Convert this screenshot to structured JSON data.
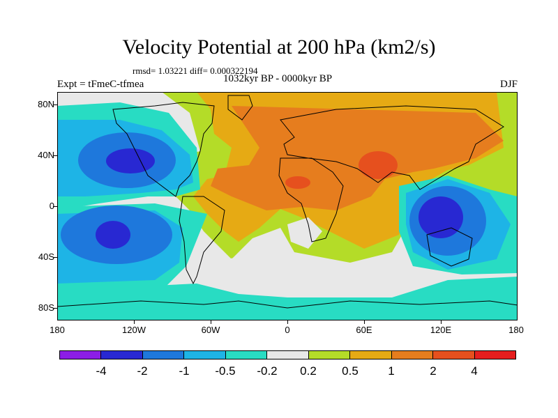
{
  "title": "Velocity Potential at 200 hPa (km2/s)",
  "stats": "rmsd= 1.03221 diff= 0.000322194",
  "period": "1032kyr BP - 0000kyr BP",
  "experiment": "Expt = tFmeC-tfmea",
  "season": "DJF",
  "map": {
    "projection": "equirectangular",
    "lon_range": [
      -180,
      180
    ],
    "lat_range": [
      -90,
      90
    ],
    "lat_labels": [
      "80N",
      "40N",
      "0",
      "40S",
      "80S"
    ],
    "lon_labels": [
      "180",
      "120W",
      "60W",
      "0",
      "60E",
      "120E",
      "180"
    ],
    "background_color": "#e8e8e8",
    "coastline_color": "#000000"
  },
  "colorbar": {
    "labels": [
      "-4",
      "-2",
      "-1",
      "-0.5",
      "-0.2",
      "0.2",
      "0.5",
      "1",
      "2",
      "4"
    ],
    "colors": [
      "#8c1ee6",
      "#2828d2",
      "#1e78dc",
      "#1eb4e6",
      "#28dcc3",
      "#e8e8e8",
      "#b4dc28",
      "#e6aa14",
      "#e67d1e",
      "#e6501e",
      "#e61e1e"
    ]
  }
}
